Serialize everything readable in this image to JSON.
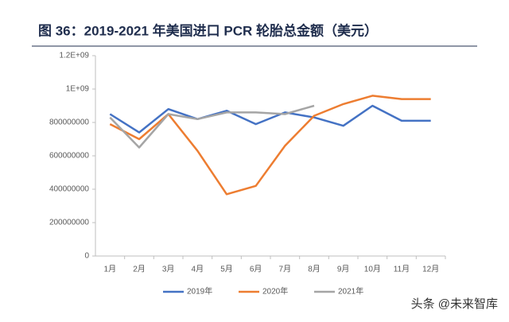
{
  "chart_data": {
    "type": "line",
    "title": "图 36：2019-2021 年美国进口 PCR 轮胎总金额（美元）",
    "watermark": "头条 @未来智库",
    "categories": [
      "1月",
      "2月",
      "3月",
      "4月",
      "5月",
      "6月",
      "7月",
      "8月",
      "9月",
      "10月",
      "11月",
      "12月"
    ],
    "series": [
      {
        "name": "2019年",
        "color": "#4472c4",
        "values": [
          850000000,
          740000000,
          880000000,
          820000000,
          870000000,
          790000000,
          860000000,
          830000000,
          780000000,
          900000000,
          810000000,
          810000000
        ]
      },
      {
        "name": "2020年",
        "color": "#ed7d31",
        "values": [
          790000000,
          700000000,
          850000000,
          630000000,
          370000000,
          420000000,
          660000000,
          840000000,
          910000000,
          960000000,
          940000000,
          940000000
        ]
      },
      {
        "name": "2021年",
        "color": "#a5a5a5",
        "values": [
          830000000,
          650000000,
          850000000,
          820000000,
          860000000,
          860000000,
          850000000,
          900000000,
          null,
          null,
          null,
          null
        ]
      }
    ],
    "ylim": [
      0,
      1200000000
    ],
    "yticks": [
      0,
      200000000,
      400000000,
      600000000,
      800000000,
      {
        "value": 1000000000,
        "label": "1E+09"
      },
      {
        "value": 1200000000,
        "label": "1.2E+09"
      }
    ],
    "legend": "bottom"
  }
}
